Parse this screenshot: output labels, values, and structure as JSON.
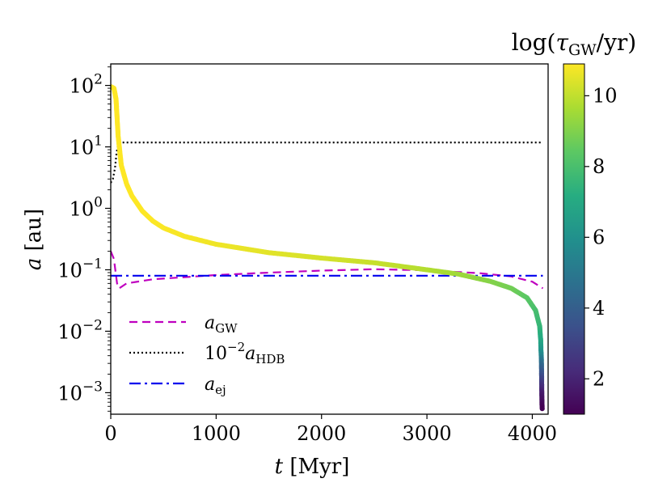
{
  "chart_data": {
    "type": "scatter",
    "xlabel_var": "t",
    "xlabel_unit": "[Myr]",
    "ylabel_var": "a",
    "ylabel_unit": "[au]",
    "xlim": [
      0,
      4150
    ],
    "ylim_log10": [
      -3.35,
      2.35
    ],
    "yscale": "log",
    "x_ticks": [
      0,
      1000,
      2000,
      3000,
      4000
    ],
    "x_tick_labels": [
      "0",
      "1000",
      "2000",
      "3000",
      "4000"
    ],
    "y_ticks_log10": [
      2,
      1,
      0,
      -1,
      -2,
      -3
    ],
    "y_tick_labels": [
      {
        "base": "10",
        "exp": "2"
      },
      {
        "base": "10",
        "exp": "1"
      },
      {
        "base": "10",
        "exp": "0"
      },
      {
        "base": "10",
        "exp": "−1"
      },
      {
        "base": "10",
        "exp": "−2"
      },
      {
        "base": "10",
        "exp": "−3"
      }
    ],
    "evolution_track": {
      "name": "a(t) colored by log(tau_GW/yr)",
      "points": [
        [
          5,
          95,
          10.9
        ],
        [
          30,
          90,
          10.9
        ],
        [
          50,
          60,
          10.9
        ],
        [
          70,
          15,
          10.9
        ],
        [
          100,
          5,
          10.9
        ],
        [
          150,
          2.5,
          10.9
        ],
        [
          200,
          1.6,
          10.9
        ],
        [
          300,
          0.9,
          10.9
        ],
        [
          400,
          0.62,
          10.9
        ],
        [
          500,
          0.48,
          10.85
        ],
        [
          700,
          0.35,
          10.8
        ],
        [
          1000,
          0.26,
          10.7
        ],
        [
          1500,
          0.19,
          10.5
        ],
        [
          2000,
          0.155,
          10.3
        ],
        [
          2500,
          0.13,
          10.1
        ],
        [
          3000,
          0.1,
          9.8
        ],
        [
          3300,
          0.085,
          9.5
        ],
        [
          3600,
          0.065,
          9.1
        ],
        [
          3800,
          0.05,
          8.8
        ],
        [
          3950,
          0.035,
          8.4
        ],
        [
          4030,
          0.022,
          8.0
        ],
        [
          4070,
          0.012,
          7.6
        ],
        [
          4080,
          0.007,
          7.0
        ],
        [
          4082,
          0.005,
          6.3
        ],
        [
          4085,
          0.004,
          5.5
        ],
        [
          4087,
          0.003,
          4.5
        ],
        [
          4088,
          0.002,
          3.5
        ],
        [
          4089,
          0.0014,
          2.6
        ],
        [
          4090,
          0.001,
          1.8
        ],
        [
          4092,
          0.00065,
          1.2
        ],
        [
          4094,
          0.00055,
          1.0
        ]
      ]
    },
    "series": [
      {
        "name": "a_GW",
        "label_main": "a",
        "label_sub": "GW",
        "color": "#bf00bf",
        "style": "dashed",
        "points": [
          [
            0,
            0.2
          ],
          [
            30,
            0.15
          ],
          [
            60,
            0.06
          ],
          [
            80,
            0.05
          ],
          [
            150,
            0.06
          ],
          [
            400,
            0.07
          ],
          [
            1000,
            0.082
          ],
          [
            1500,
            0.09
          ],
          [
            2000,
            0.097
          ],
          [
            2500,
            0.102
          ],
          [
            3000,
            0.098
          ],
          [
            3500,
            0.088
          ],
          [
            3800,
            0.078
          ],
          [
            4000,
            0.064
          ],
          [
            4100,
            0.05
          ]
        ]
      },
      {
        "name": "10^-2 a_HDB",
        "label_prefix": "10",
        "label_prefix_exp": "−2",
        "label_main": "a",
        "label_sub": "HDB",
        "color": "#000000",
        "style": "dotted",
        "points": [
          [
            0,
            2.6
          ],
          [
            20,
            3.0
          ],
          [
            40,
            4.5
          ],
          [
            55,
            8
          ],
          [
            70,
            11
          ],
          [
            100,
            11.8
          ],
          [
            500,
            11.8
          ],
          [
            4100,
            11.8
          ]
        ]
      },
      {
        "name": "a_ej",
        "label_main": "a",
        "label_sub": "ej",
        "color": "#0000ee",
        "style": "dashdot",
        "points": [
          [
            0,
            0.08
          ],
          [
            4100,
            0.08
          ]
        ]
      }
    ],
    "colorbar": {
      "title_prefix": "log(",
      "title_symbol": "τ",
      "title_sub": "GW",
      "title_suffix": "/yr)",
      "range": [
        1.0,
        10.9
      ],
      "ticks": [
        2,
        4,
        6,
        8,
        10
      ],
      "tick_labels": [
        "2",
        "4",
        "6",
        "8",
        "10"
      ],
      "colormap": "viridis"
    },
    "legend_location": "lower-left"
  }
}
